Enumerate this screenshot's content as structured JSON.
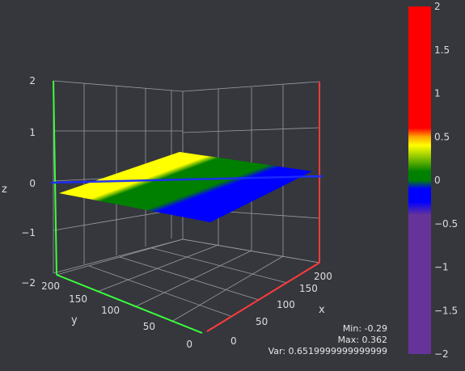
{
  "chart_data": {
    "type": "surface",
    "xlabel": "x",
    "ylabel": "y",
    "zlabel": "z",
    "xlim": [
      0,
      200
    ],
    "ylim": [
      0,
      200
    ],
    "zlim": [
      -2,
      2
    ],
    "x_ticks": [
      "0",
      "50",
      "100",
      "150",
      "200"
    ],
    "y_ticks": [
      "0",
      "50",
      "100",
      "150",
      "200"
    ],
    "z_ticks": [
      "−2",
      "−1",
      "0",
      "1",
      "2"
    ],
    "surface_corners": [
      {
        "x": 0,
        "y": 0,
        "z": -0.29
      },
      {
        "x": 200,
        "y": 0,
        "z": -0.02
      },
      {
        "x": 200,
        "y": 200,
        "z": 0.362
      },
      {
        "x": 0,
        "y": 200,
        "z": 0.05
      }
    ],
    "colorbar": {
      "range": [
        -2,
        2
      ],
      "ticks": [
        "2",
        "1.5",
        "1",
        "0.5",
        "0",
        "−0.5",
        "−1",
        "−1.5",
        "−2"
      ],
      "stops": [
        {
          "value": 2,
          "color": "#ff0000"
        },
        {
          "value": 0.6,
          "color": "#ff0000"
        },
        {
          "value": 0.5,
          "color": "#ffa500"
        },
        {
          "value": 0.4,
          "color": "#ffff00"
        },
        {
          "value": 0.1,
          "color": "#008000"
        },
        {
          "value": 0,
          "color": "#008000"
        },
        {
          "value": -0.1,
          "color": "#0000ff"
        },
        {
          "value": -0.25,
          "color": "#0000ff"
        },
        {
          "value": -0.4,
          "color": "#663399"
        },
        {
          "value": -2,
          "color": "#663399"
        }
      ]
    },
    "stats": {
      "min": "Min: -0.29",
      "max": "Max: 0.362",
      "var": "Var: 0.6519999999999999"
    }
  },
  "colors": {
    "background": "#35373d",
    "grid": "#9a9ca2",
    "x_axis": "#ff3b3b",
    "y_axis": "#3bff3b",
    "z_axis": "#3b3bff"
  }
}
